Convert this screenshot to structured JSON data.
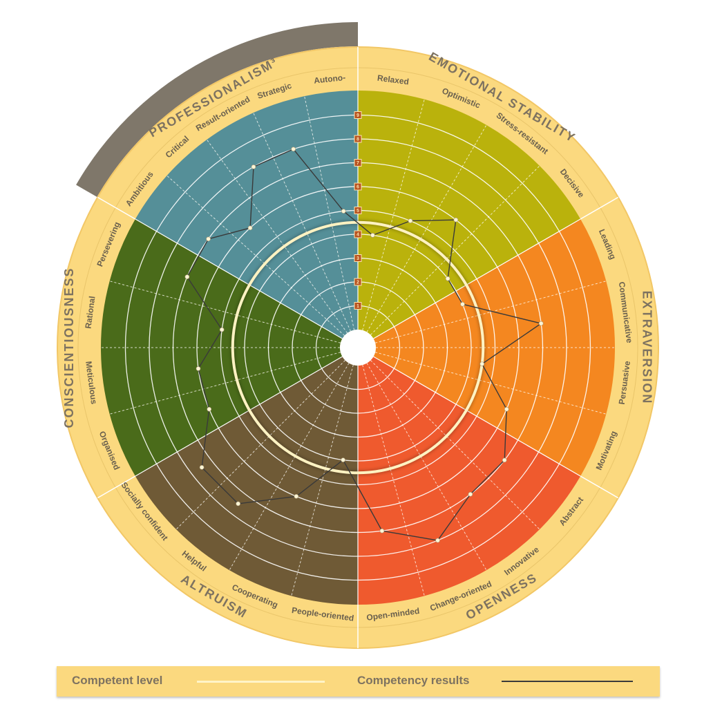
{
  "colors": {
    "ring": "#fbd97f",
    "ring_stroke": "#f2c766",
    "highlight_arc": "#7f776a",
    "category_text": "#7d7260",
    "competent_line": "#fff2c2",
    "results_line": "#3a3a3a",
    "badge": "#b8521f"
  },
  "chart_data": {
    "type": "radar",
    "scale_labels": [
      "1",
      "2",
      "3",
      "4",
      "5",
      "6",
      "7",
      "8",
      "9"
    ],
    "scale_max": 9,
    "competent_level": 4.5,
    "categories": [
      {
        "name": "EMOTIONAL STABILITY",
        "color": "#bab20c",
        "competencies": [
          "Relaxed",
          "Optimistic",
          "Stress-resistant",
          "Decisive"
        ],
        "results": [
          4.0,
          5.0,
          6.0,
          4.0
        ]
      },
      {
        "name": "EXTRAVERSION",
        "color": "#f48720",
        "competencies": [
          "Leading",
          "Communicative",
          "Persuasive",
          "Motivating"
        ],
        "results": [
          4.0,
          7.0,
          4.5,
          6.0
        ]
      },
      {
        "name": "OPENNESS",
        "color": "#ef5a2e",
        "competencies": [
          "Abstract",
          "Innovative",
          "Change-oriented",
          "Open-minded"
        ],
        "results": [
          7.0,
          7.0,
          8.0,
          7.0
        ]
      },
      {
        "name": "ALTRUISM",
        "color": "#6f5a36",
        "competencies": [
          "People-oriented",
          "Cooperating",
          "Helpful",
          "Socially confident"
        ],
        "results": [
          4.0,
          6.0,
          7.5,
          7.5
        ]
      },
      {
        "name": "CONSCIENTIOUSNESS",
        "color": "#4a6b1a",
        "competencies": [
          "Organised",
          "Meticulous",
          "Rational",
          "Persevering"
        ],
        "results": [
          6.0,
          6.0,
          5.0,
          7.0
        ]
      },
      {
        "name": "PROFESSIONALISM³",
        "color": "#558f98",
        "highlighted": true,
        "competencies": [
          "Ambitious",
          "Critical",
          "Result-oriented",
          "Strategic",
          "Autono-"
        ],
        "results": [
          7.0,
          6.0,
          8.0,
          8.0,
          5.0
        ]
      }
    ]
  },
  "legend": {
    "competent_label": "Competent level",
    "results_label": "Competency results"
  }
}
